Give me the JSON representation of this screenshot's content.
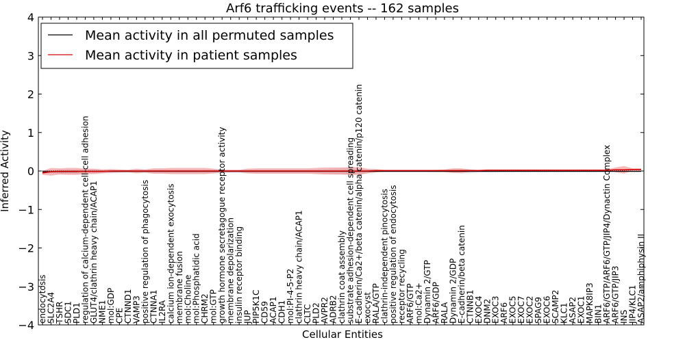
{
  "chart_data": {
    "type": "line",
    "title": "Arf6 trafficking events -- 162 samples",
    "xlabel": "Cellular Entities",
    "ylabel": "Inferred Activity",
    "ylim": [
      -4,
      4
    ],
    "yticks": [
      "−4",
      "−3",
      "−2",
      "−1",
      "0",
      "1",
      "2",
      "3",
      "4"
    ],
    "grid": false,
    "legend_position": "top-left",
    "colors": {
      "permuted": "#000000",
      "patient": "#d40000",
      "patient_band": "#f08080",
      "permuted_band": "#c8c8d2"
    },
    "categories": [
      "endocytosis",
      "SLC2A4",
      "TSHR",
      "SDC1",
      "PLD1",
      "regulation of calcium-dependent cell-cell adhesion",
      "GLUT4/clathrin heavy chain/ACAP1",
      "NME1",
      "mol:GDP",
      "CPE",
      "CTNND1",
      "VAMP3",
      "positive regulation of phagocytosis",
      "CTNNA1",
      "IL2RA",
      "calcium ion-dependent exocytosis",
      "membrane fusion",
      "mol:Choline",
      "mol:Phosphatidic acid",
      "CHRM2",
      "mol:GTP",
      "growth hormone secretagogue receptor activity",
      "membrane depolarization",
      "insulin receptor binding",
      "JUP",
      "PIP5K1C",
      "CD59",
      "ACAP1",
      "CDH1",
      "mol:PI-4-5-P2",
      "clathrin heavy chain/ACAP1",
      "CLTC",
      "PLD2",
      "AVPR2",
      "ADRB2",
      "clathrin coat assembly",
      "substrate adhesion-dependent cell spreading",
      "E-cadherin/Ca2+/beta catenin/alpha catenin/p120 catenin",
      "exocyst",
      "RALA/GTP",
      "clathrin-independent pinocytosis",
      "positive regulation of endocytosis",
      "receptor recycling",
      "ARF6/GTP",
      "mol:Ca2+",
      "Dynamin 2/GTP",
      "ARF6/GDP",
      "RALA",
      "Dynamin 2/GDP",
      "E-cadherin/beta catenin",
      "CTNNB1",
      "EXOC4",
      "DNM2",
      "EXOC3",
      "ARF6",
      "EXOC5",
      "EXOC7",
      "EXOC2",
      "SPAG9",
      "EXOC6",
      "SCAMP2",
      "KLC1",
      "ASAP2",
      "EXOC1",
      "MAPK8IP3",
      "BIN1",
      "ARF6/GTP/ARF6/GTP/JIP4/Dynactin Complex",
      "ARF6/GTP/JIP3",
      "INS",
      "JIP4/KLC1",
      "ASAP2/amphiphysin II"
    ],
    "series": [
      {
        "name": "Mean activity in all permuted samples",
        "values": [
          -0.02,
          -0.02,
          -0.02,
          -0.02,
          -0.02,
          -0.01,
          -0.01,
          -0.01,
          -0.01,
          -0.01,
          -0.01,
          -0.01,
          -0.01,
          -0.01,
          -0.01,
          -0.01,
          -0.01,
          -0.01,
          -0.01,
          -0.01,
          -0.01,
          -0.01,
          -0.01,
          -0.01,
          -0.01,
          -0.01,
          -0.01,
          -0.01,
          -0.01,
          -0.01,
          -0.01,
          -0.01,
          -0.01,
          -0.01,
          -0.01,
          -0.01,
          -0.01,
          -0.01,
          -0.01,
          -0.01,
          -0.01,
          -0.01,
          -0.01,
          -0.01,
          -0.01,
          -0.01,
          -0.01,
          -0.01,
          -0.01,
          -0.01,
          -0.01,
          -0.01,
          -0.01,
          -0.01,
          -0.01,
          -0.01,
          -0.01,
          -0.01,
          -0.01,
          -0.01,
          -0.01,
          -0.01,
          -0.01,
          -0.01,
          -0.01,
          -0.01,
          -0.01,
          -0.01,
          -0.01,
          -0.01,
          -0.01
        ],
        "spread": [
          0.04,
          0.04,
          0.06,
          0.06,
          0.06,
          0.05,
          0.05,
          0.04,
          0.04,
          0.04,
          0.04,
          0.04,
          0.04,
          0.05,
          0.05,
          0.05,
          0.05,
          0.05,
          0.05,
          0.05,
          0.05,
          0.05,
          0.04,
          0.04,
          0.05,
          0.05,
          0.05,
          0.05,
          0.05,
          0.05,
          0.05,
          0.05,
          0.05,
          0.06,
          0.07,
          0.08,
          0.08,
          0.07,
          0.05,
          0.03,
          0.02,
          0.02,
          0.02,
          0.02,
          0.02,
          0.02,
          0.03,
          0.03,
          0.04,
          0.05,
          0.05,
          0.03,
          0.03,
          0.03,
          0.02,
          0.02,
          0.02,
          0.02,
          0.02,
          0.02,
          0.02,
          0.02,
          0.02,
          0.02,
          0.02,
          0.02,
          0.02,
          0.02,
          0.02,
          0.02,
          0.02
        ]
      },
      {
        "name": "Mean activity in patient samples",
        "values": [
          -0.05,
          -0.02,
          -0.01,
          -0.01,
          -0.01,
          -0.01,
          -0.01,
          -0.01,
          0.0,
          0.0,
          0.0,
          0.0,
          0.0,
          0.0,
          0.0,
          0.0,
          0.0,
          0.0,
          0.0,
          0.0,
          0.0,
          0.0,
          0.0,
          0.0,
          0.0,
          0.0,
          0.0,
          0.0,
          0.0,
          0.0,
          0.0,
          0.0,
          0.0,
          0.0,
          0.0,
          0.0,
          0.0,
          0.0,
          0.0,
          0.01,
          0.01,
          0.01,
          0.01,
          0.01,
          0.01,
          0.01,
          0.01,
          0.01,
          0.01,
          0.01,
          0.01,
          0.01,
          0.02,
          0.02,
          0.02,
          0.02,
          0.02,
          0.02,
          0.02,
          0.02,
          0.02,
          0.02,
          0.02,
          0.02,
          0.02,
          0.02,
          0.02,
          0.03,
          0.03,
          0.04,
          0.04
        ],
        "spread": [
          0.05,
          0.1,
          0.08,
          0.09,
          0.09,
          0.07,
          0.07,
          0.05,
          0.05,
          0.04,
          0.03,
          0.06,
          0.04,
          0.07,
          0.07,
          0.08,
          0.08,
          0.08,
          0.08,
          0.08,
          0.06,
          0.03,
          0.03,
          0.03,
          0.06,
          0.07,
          0.07,
          0.07,
          0.07,
          0.07,
          0.07,
          0.07,
          0.08,
          0.09,
          0.09,
          0.09,
          0.1,
          0.1,
          0.06,
          0.04,
          0.02,
          0.02,
          0.02,
          0.02,
          0.02,
          0.02,
          0.02,
          0.03,
          0.06,
          0.06,
          0.03,
          0.02,
          0.02,
          0.02,
          0.02,
          0.02,
          0.02,
          0.02,
          0.02,
          0.02,
          0.02,
          0.02,
          0.02,
          0.02,
          0.02,
          0.02,
          0.02,
          0.06,
          0.1,
          0.03,
          0.03
        ]
      }
    ]
  }
}
